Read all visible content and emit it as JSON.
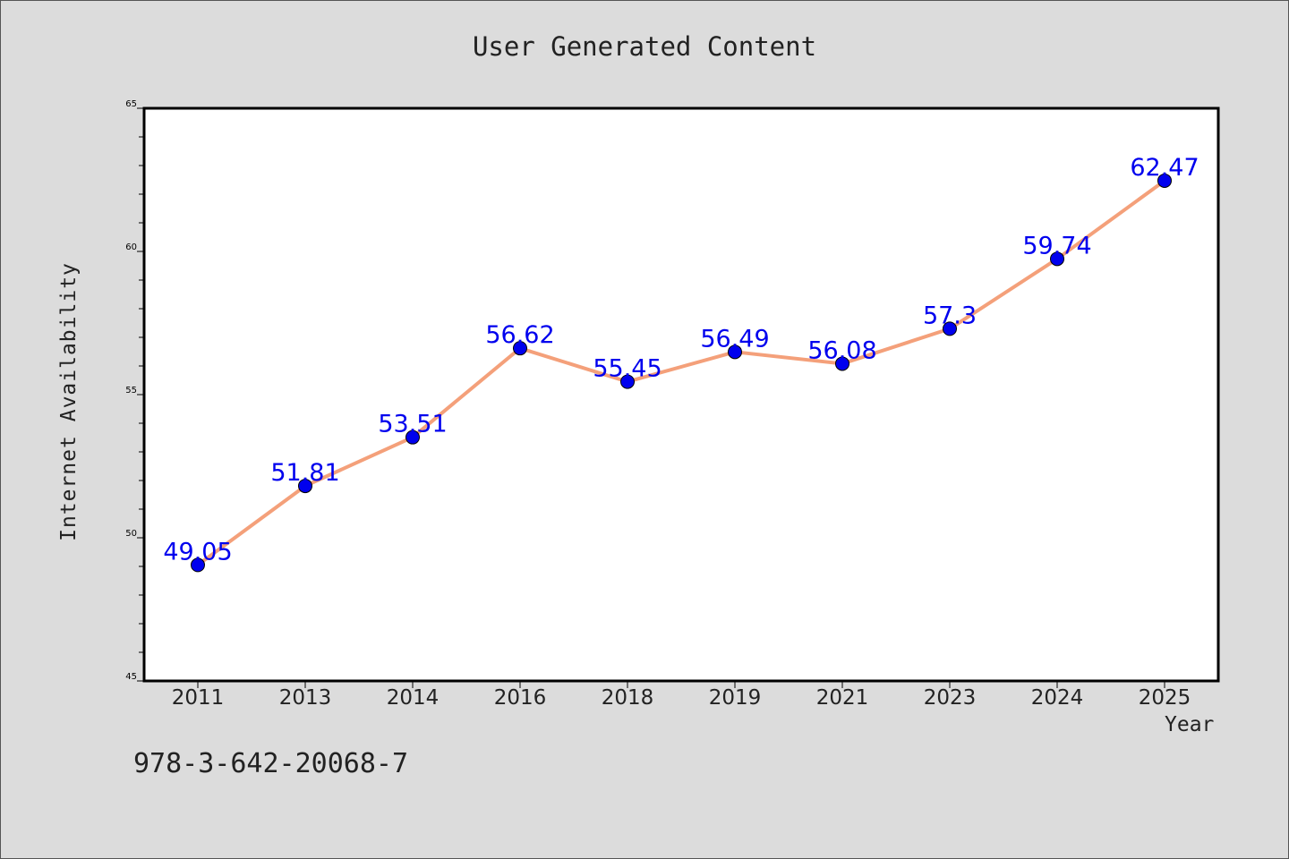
{
  "chart_data": {
    "type": "line",
    "title": "User Generated Content",
    "xlabel": "Year",
    "ylabel": "Internet Availability",
    "categories": [
      "2011",
      "2013",
      "2014",
      "2016",
      "2018",
      "2019",
      "2021",
      "2023",
      "2024",
      "2025"
    ],
    "series": [
      {
        "values": [
          49.05,
          51.81,
          53.51,
          56.62,
          55.45,
          56.49,
          56.08,
          57.3,
          59.74,
          62.47
        ],
        "line_color": "#f4a07a",
        "marker_color": "#0000ee",
        "label_color": "#0000ee"
      }
    ],
    "ylim": [
      45,
      65
    ],
    "yticks": [
      45,
      50,
      55,
      60,
      65
    ],
    "data_labels": [
      "49.05",
      "51.81",
      "53.51",
      "56.62",
      "55.45",
      "56.49",
      "56.08",
      "57.3",
      "59.74",
      "62.47"
    ],
    "grid": false,
    "legend": "none"
  },
  "footer": {
    "isbn": "978-3-642-20068-7"
  }
}
